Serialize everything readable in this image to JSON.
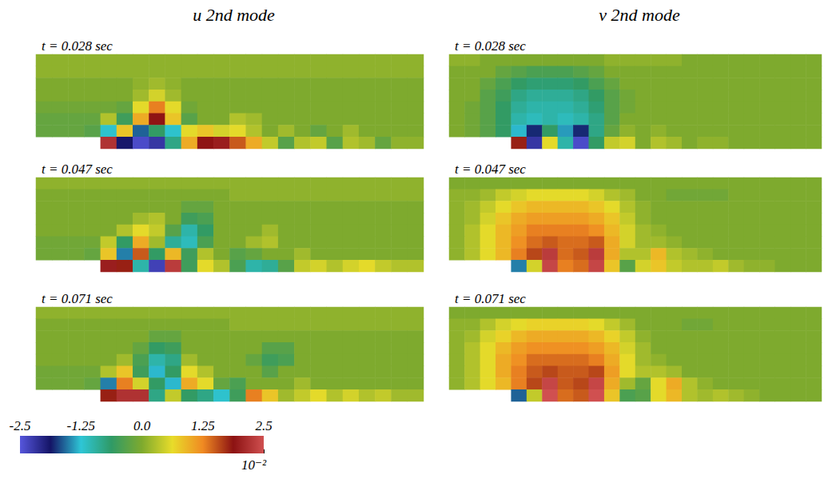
{
  "colorbar": {
    "range": [
      -2.5,
      2.5
    ],
    "ticks": [
      -2.5,
      -1.25,
      {
        "value": 0,
        "label": "0.0"
      },
      1.25,
      2.5
    ],
    "multiplier": "10⁻²"
  },
  "chart_data": [
    {
      "type": "heatmap",
      "group": "u 2nd mode",
      "title": "t = 0.028 sec",
      "tick_labels": false,
      "cells": [
        [
          0.1,
          0.1,
          0.1,
          0.1,
          0.1,
          0.1,
          0.1,
          0.1,
          0.1,
          0.1,
          0.1,
          0.1,
          0.1,
          0.1,
          0.1,
          0.1,
          0.1,
          0.1,
          0.1,
          0.1,
          0.1,
          0.1,
          0.1,
          0.1
        ],
        [
          0.1,
          0.1,
          0.1,
          0.1,
          0.1,
          0.1,
          0.1,
          0.1,
          0.1,
          0.1,
          0.1,
          0.1,
          0.1,
          0.1,
          0.1,
          0.1,
          0.1,
          0.1,
          0.1,
          0.1,
          0.1,
          0.1,
          0.1,
          0.1
        ],
        [
          0,
          0,
          0,
          0,
          0,
          0,
          0.1,
          0.2,
          0.1,
          0,
          0,
          0,
          0,
          0,
          0,
          0,
          0,
          0,
          0,
          0,
          0,
          0,
          0,
          0
        ],
        [
          0,
          0,
          0,
          0,
          0,
          0,
          0.2,
          0.5,
          0.2,
          0,
          0,
          0,
          0,
          0,
          0,
          0,
          0,
          0,
          0,
          0,
          0,
          0,
          0,
          0
        ],
        [
          -0.1,
          -0.1,
          -0.1,
          -0.1,
          -0.1,
          -0.2,
          0.6,
          1.3,
          0.6,
          -0.1,
          0,
          0,
          0,
          0,
          0,
          0,
          0,
          0,
          0,
          0,
          0,
          0,
          0,
          0
        ],
        [
          -0.2,
          -0.2,
          -0.2,
          -0.2,
          0.3,
          -0.5,
          1.0,
          1.9,
          0.8,
          -0.3,
          0,
          0,
          0.3,
          0.2,
          0,
          0,
          0,
          0,
          0,
          0,
          0,
          0,
          0,
          0
        ],
        [
          -0.2,
          -0.2,
          -0.2,
          -0.3,
          -1.2,
          0.8,
          -1.6,
          -0.6,
          -1.2,
          0.6,
          0.8,
          0.5,
          0.6,
          0.3,
          0,
          0.2,
          0,
          -0.2,
          0,
          0.2,
          0,
          0,
          0,
          0
        ],
        [
          null,
          null,
          null,
          null,
          2.2,
          -1.9,
          -2.4,
          -2.2,
          -0.8,
          1.0,
          1.9,
          2.0,
          1.5,
          1.0,
          0.4,
          -0.3,
          0.3,
          0.4,
          -0.3,
          0.3,
          0.2,
          -0.2,
          0.1,
          0.1
        ]
      ]
    },
    {
      "type": "heatmap",
      "group": "u 2nd mode",
      "title": "t = 0.047 sec",
      "tick_labels": false,
      "cells": [
        [
          0.1,
          0.1,
          0.1,
          0.1,
          0.1,
          0.1,
          0.1,
          0.1,
          0.1,
          0.1,
          0.1,
          0.1,
          0.1,
          0.1,
          0.1,
          0.1,
          0.1,
          0.1,
          0.1,
          0.1,
          0.1,
          0.1,
          0.1,
          0.1
        ],
        [
          0,
          0,
          0,
          0,
          0,
          0,
          0,
          0,
          0,
          0,
          0,
          0,
          0.1,
          0.1,
          0.1,
          0.1,
          0.1,
          0.1,
          0.1,
          0.1,
          0.1,
          0.1,
          0.1,
          0.1
        ],
        [
          0,
          0,
          0,
          0,
          0,
          0,
          0,
          0,
          0,
          -0.2,
          -0.2,
          0,
          0,
          0,
          0,
          0,
          0,
          0,
          0,
          0,
          0,
          0,
          0,
          0
        ],
        [
          0,
          0,
          0,
          0,
          0,
          0,
          0.2,
          0.3,
          0,
          -0.5,
          -0.4,
          0,
          0,
          0,
          0,
          0,
          0,
          0,
          0,
          0,
          0,
          0,
          0,
          0
        ],
        [
          0,
          0,
          0,
          0,
          0,
          0.3,
          0.6,
          0.4,
          -0.3,
          -1.0,
          -0.6,
          0,
          0,
          0,
          0.2,
          0,
          0,
          0,
          0,
          0,
          0,
          0,
          0,
          0
        ],
        [
          -0.1,
          -0.1,
          -0.1,
          -0.1,
          0.4,
          -0.6,
          1.0,
          0.2,
          -0.9,
          -1.1,
          -0.4,
          0,
          0,
          0.2,
          0.3,
          0,
          0,
          0,
          0,
          0,
          0,
          0,
          0,
          0
        ],
        [
          -0.1,
          -0.1,
          -0.1,
          -0.2,
          0.8,
          -1.5,
          1.5,
          -0.6,
          0.9,
          -0.5,
          0.3,
          0,
          -0.3,
          -0.2,
          0,
          0,
          0.2,
          0,
          0,
          0,
          0,
          0,
          0,
          0
        ],
        [
          null,
          null,
          null,
          null,
          2.0,
          1.8,
          -1.0,
          -2.3,
          2.3,
          -0.5,
          0.6,
          0.3,
          -0.4,
          -1.0,
          -0.9,
          -0.3,
          0.4,
          0.5,
          0.3,
          0.5,
          0.6,
          0.4,
          0.3,
          0.3
        ]
      ]
    },
    {
      "type": "heatmap",
      "group": "u 2nd mode",
      "title": "t = 0.071 sec",
      "tick_labels": false,
      "cells": [
        [
          0.1,
          0.1,
          0.1,
          0.1,
          0.1,
          0.1,
          0.1,
          0.1,
          0.1,
          0.1,
          0.1,
          0.1,
          0.1,
          0.1,
          0.1,
          0.1,
          0.1,
          0.1,
          0.1,
          0.1,
          0.1,
          0.1,
          0.1,
          0.1
        ],
        [
          0,
          0,
          0,
          0,
          0,
          0,
          0,
          0,
          0,
          0,
          0,
          0,
          0.1,
          0.1,
          0.1,
          0.1,
          0.1,
          0.1,
          0.1,
          0.1,
          0.1,
          0.1,
          0.1,
          0.1
        ],
        [
          0,
          0,
          0,
          0,
          0,
          0,
          0,
          -0.2,
          -0.2,
          0,
          0,
          0,
          0,
          0,
          0,
          0,
          0,
          0,
          0,
          0,
          0,
          0,
          0,
          0
        ],
        [
          0,
          0,
          0,
          0,
          0,
          0,
          -0.2,
          -0.6,
          -0.5,
          0,
          0,
          0,
          0,
          0,
          -0.3,
          -0.3,
          0,
          0,
          0,
          0,
          0,
          0,
          0,
          0
        ],
        [
          0,
          0,
          0,
          0,
          0,
          0.2,
          -0.4,
          -1.0,
          -0.8,
          0.2,
          0,
          0,
          0,
          -0.2,
          -0.5,
          -0.4,
          0,
          0,
          0,
          0,
          0,
          0,
          0,
          0
        ],
        [
          -0.1,
          -0.1,
          -0.1,
          -0.1,
          0.3,
          0.8,
          -0.5,
          -1.3,
          -0.6,
          0.6,
          0.3,
          0,
          0,
          0,
          -0.3,
          0,
          0,
          0,
          0,
          0,
          0,
          0,
          0,
          0
        ],
        [
          -0.1,
          -0.1,
          -0.1,
          -0.2,
          -1.5,
          1.3,
          0.5,
          -0.6,
          -1.3,
          1.0,
          0.6,
          -0.2,
          -0.4,
          0,
          0,
          0,
          0.2,
          0,
          0,
          0,
          0,
          0,
          0,
          0
        ],
        [
          null,
          null,
          null,
          null,
          1.8,
          2.2,
          2.2,
          -0.8,
          0.4,
          -0.6,
          -0.8,
          -1.2,
          -0.5,
          1.3,
          0.8,
          0.2,
          0.4,
          0.6,
          0.3,
          0.5,
          0.3,
          0.4,
          0.2,
          0.2
        ]
      ]
    },
    {
      "type": "heatmap",
      "group": "v 2nd mode",
      "title": "t = 0.028 sec",
      "tick_labels": false,
      "cells": [
        [
          0.1,
          0.1,
          0,
          0,
          0,
          0,
          0,
          0,
          0,
          0,
          0.1,
          0.1,
          0.1,
          0.1,
          0.1,
          0,
          0,
          0,
          0,
          0,
          0,
          0,
          0,
          0
        ],
        [
          0,
          0,
          0,
          -0.2,
          -0.3,
          -0.4,
          -0.4,
          -0.4,
          -0.3,
          -0.2,
          0,
          0,
          0,
          0,
          0,
          0,
          0,
          0,
          0,
          0,
          0,
          0,
          0,
          0
        ],
        [
          0,
          0,
          -0.2,
          -0.4,
          -0.6,
          -0.7,
          -0.7,
          -0.7,
          -0.6,
          -0.4,
          -0.2,
          0,
          0,
          0,
          0,
          0,
          0,
          0,
          0,
          0,
          0,
          0,
          0,
          0
        ],
        [
          0,
          0,
          -0.3,
          -0.5,
          -0.8,
          -0.9,
          -0.9,
          -0.9,
          -0.8,
          -0.6,
          -0.3,
          -0.1,
          0,
          0,
          0,
          0,
          0,
          0,
          0,
          0,
          0,
          0,
          0,
          0
        ],
        [
          0,
          -0.1,
          -0.3,
          -0.6,
          -0.9,
          -1.0,
          -1.0,
          -1.0,
          -0.9,
          -0.7,
          -0.3,
          -0.1,
          0,
          0,
          0,
          0,
          0,
          0,
          0,
          0,
          0,
          0,
          0,
          0
        ],
        [
          0,
          -0.1,
          -0.3,
          -0.6,
          -1.0,
          -1.1,
          -1.0,
          -1.1,
          -1.0,
          -0.8,
          -0.3,
          0,
          0,
          0,
          0,
          0,
          0,
          0,
          0,
          0,
          0,
          0,
          0,
          0
        ],
        [
          0,
          -0.1,
          -0.3,
          -0.6,
          -1.3,
          -1.8,
          -0.6,
          -1.4,
          -1.8,
          -0.8,
          -0.2,
          0.1,
          0,
          0.1,
          0,
          0,
          0,
          0,
          0,
          0,
          0,
          0,
          0,
          0
        ],
        [
          null,
          null,
          null,
          null,
          1.8,
          -2.2,
          0.6,
          -1.0,
          -2.4,
          -0.6,
          0.4,
          0.5,
          0,
          0.3,
          0.2,
          0,
          0.1,
          0.1,
          0,
          0,
          0,
          0,
          0,
          0
        ]
      ]
    },
    {
      "type": "heatmap",
      "group": "v 2nd mode",
      "title": "t = 0.047 sec",
      "tick_labels": false,
      "cells": [
        [
          0,
          0,
          0,
          0,
          0,
          0,
          0,
          0,
          0,
          0,
          0,
          0,
          0,
          0,
          0,
          0,
          0,
          0,
          0,
          0,
          0,
          0,
          0,
          0
        ],
        [
          0.1,
          0.1,
          0.2,
          0.4,
          0.5,
          0.6,
          0.6,
          0.6,
          0.6,
          0.5,
          0.3,
          0.2,
          0,
          0,
          -0.1,
          -0.1,
          -0.1,
          -0.1,
          0,
          0,
          0,
          0,
          0,
          0
        ],
        [
          0.1,
          0.2,
          0.4,
          0.6,
          0.8,
          0.9,
          0.9,
          0.9,
          0.9,
          0.8,
          0.6,
          0.3,
          0.1,
          0,
          0,
          0,
          0,
          0,
          0,
          0,
          0,
          0,
          0,
          0
        ],
        [
          0.1,
          0.2,
          0.5,
          0.8,
          1.0,
          1.1,
          1.1,
          1.1,
          1.1,
          1.0,
          0.8,
          0.4,
          0.1,
          0,
          0,
          0,
          0,
          0,
          0,
          0,
          0,
          0,
          0,
          0
        ],
        [
          0.1,
          0.3,
          0.6,
          0.9,
          1.1,
          1.3,
          1.3,
          1.3,
          1.3,
          1.2,
          0.9,
          0.5,
          0.2,
          0.1,
          0,
          0,
          0,
          0,
          0,
          0,
          0,
          0,
          0,
          0
        ],
        [
          0.1,
          0.3,
          0.6,
          0.9,
          1.2,
          1.4,
          1.5,
          1.4,
          1.4,
          1.5,
          1.0,
          0.5,
          0.2,
          0.2,
          0.1,
          0,
          0,
          0,
          0,
          0,
          0,
          0,
          0,
          0
        ],
        [
          0.1,
          0.3,
          0.6,
          0.9,
          1.3,
          1.6,
          2.3,
          1.4,
          1.5,
          2.3,
          1.0,
          0.3,
          0.3,
          0.9,
          0.3,
          0.2,
          0.1,
          0,
          0,
          0,
          0,
          0,
          0,
          0
        ],
        [
          null,
          null,
          null,
          null,
          -1.5,
          0.5,
          2.4,
          1.3,
          1.4,
          2.4,
          0.8,
          -0.3,
          0.5,
          0.8,
          0.4,
          0.3,
          0.3,
          0.4,
          0.2,
          0.1,
          0.1,
          0,
          0,
          0
        ]
      ]
    },
    {
      "type": "heatmap",
      "group": "v 2nd mode",
      "title": "t = 0.071 sec",
      "tick_labels": false,
      "cells": [
        [
          0,
          0,
          0,
          0,
          0,
          0,
          0,
          0,
          0,
          0,
          0,
          0,
          0,
          0,
          0,
          0,
          0,
          0,
          0,
          0,
          0,
          0,
          0,
          0
        ],
        [
          0.1,
          0.1,
          0.3,
          0.5,
          0.6,
          0.7,
          0.7,
          0.7,
          0.7,
          0.6,
          0.4,
          0.2,
          0,
          0,
          0,
          -0.1,
          -0.1,
          0,
          0,
          0,
          0,
          0,
          0,
          0
        ],
        [
          0.1,
          0.2,
          0.5,
          0.7,
          0.9,
          1.0,
          1.0,
          1.0,
          1.0,
          0.9,
          0.7,
          0.4,
          0.1,
          0,
          0,
          0,
          0,
          0,
          0,
          0,
          0,
          0,
          0,
          0
        ],
        [
          0.1,
          0.3,
          0.6,
          0.9,
          1.1,
          1.2,
          1.2,
          1.2,
          1.2,
          1.1,
          0.9,
          0.5,
          0.2,
          0,
          0,
          0,
          0,
          0,
          0,
          0,
          0,
          0,
          0,
          0
        ],
        [
          0.1,
          0.3,
          0.6,
          1.0,
          1.2,
          1.4,
          1.4,
          1.4,
          1.4,
          1.3,
          1.0,
          0.6,
          0.2,
          0.1,
          0,
          0,
          0,
          0,
          0,
          0,
          0,
          0,
          0,
          0
        ],
        [
          0.1,
          0.3,
          0.6,
          1.0,
          1.3,
          1.5,
          1.6,
          1.5,
          1.5,
          1.6,
          1.1,
          0.6,
          0.3,
          0.3,
          0.2,
          0,
          0,
          0,
          0,
          0,
          0,
          0,
          0,
          0
        ],
        [
          0.1,
          0.3,
          0.6,
          0.9,
          1.3,
          1.6,
          2.4,
          1.5,
          1.6,
          2.4,
          1.0,
          0.2,
          -0.2,
          0.6,
          1.0,
          0.3,
          0.1,
          0,
          0,
          0,
          0,
          0,
          0,
          0
        ],
        [
          null,
          null,
          null,
          null,
          -1.6,
          0.4,
          2.5,
          1.4,
          1.5,
          2.5,
          0.8,
          -0.4,
          -0.3,
          0.6,
          0.9,
          0.3,
          0.2,
          0.3,
          0.2,
          0.1,
          0,
          0,
          0,
          0
        ]
      ]
    }
  ]
}
